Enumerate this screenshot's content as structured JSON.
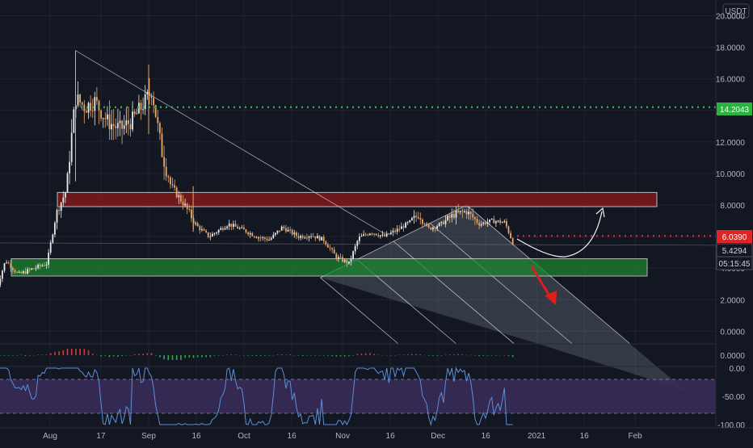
{
  "colors": {
    "background": "#131722",
    "grid": "#1f2330",
    "axis_text": "#b2b5be",
    "candle_up": "#e8e8e8",
    "candle_down": "#e8a867",
    "resistance_zone": "#8b1a1a",
    "support_zone": "#1c8a2f",
    "green_level": "#2fb53d",
    "red_level": "#e02424",
    "channel_fill": "#aab7c4",
    "rsi_band": "#3b2d5c",
    "rsi_line": "#5b8fd6"
  },
  "chart_data": [
    {
      "type": "candlestick",
      "quote_unit": "USDT",
      "price_axis_ticks": [
        "20.0000",
        "18.0000",
        "16.0000",
        "14.0000",
        "12.0000",
        "10.0000",
        "8.0000",
        "6.0000",
        "4.0000",
        "2.0000",
        "0.0000"
      ],
      "time_axis_ticks": [
        "Aug",
        "17",
        "Sep",
        "16",
        "Oct",
        "16",
        "Nov",
        "16",
        "Dec",
        "16",
        "2021",
        "16",
        "Feb"
      ],
      "ylim": [
        -0.8,
        21
      ],
      "price_labels": {
        "green_level": "14.2043",
        "red_level": "6.0390",
        "last_price": "5.4294",
        "countdown": "05:15:45"
      },
      "levels": [
        {
          "value": 14.2043,
          "style": "dotted",
          "color": "green"
        },
        {
          "value": 6.039,
          "style": "dotted",
          "color": "red"
        }
      ],
      "zones": [
        {
          "type": "resistance",
          "price_low": 7.9,
          "price_high": 8.8,
          "time_start": "2020-08-01",
          "time_end": "2021-01-25"
        },
        {
          "type": "support",
          "price_low": 3.5,
          "price_high": 4.6,
          "time_start": "2020-07-15",
          "time_end": "2021-01-20"
        }
      ],
      "channel_start": "2020-10-25",
      "channel_peak": "2020-12-10",
      "channel_end": "2021-02-10"
    },
    {
      "type": "bar",
      "panel": "momentum",
      "axis_ticks": [
        "0.0000"
      ]
    },
    {
      "type": "line",
      "panel": "rsi",
      "axis_ticks": [
        "0.00",
        "-50.00",
        "-100.00"
      ],
      "ylim": [
        -100,
        0
      ],
      "band": [
        -20,
        -80
      ]
    }
  ]
}
